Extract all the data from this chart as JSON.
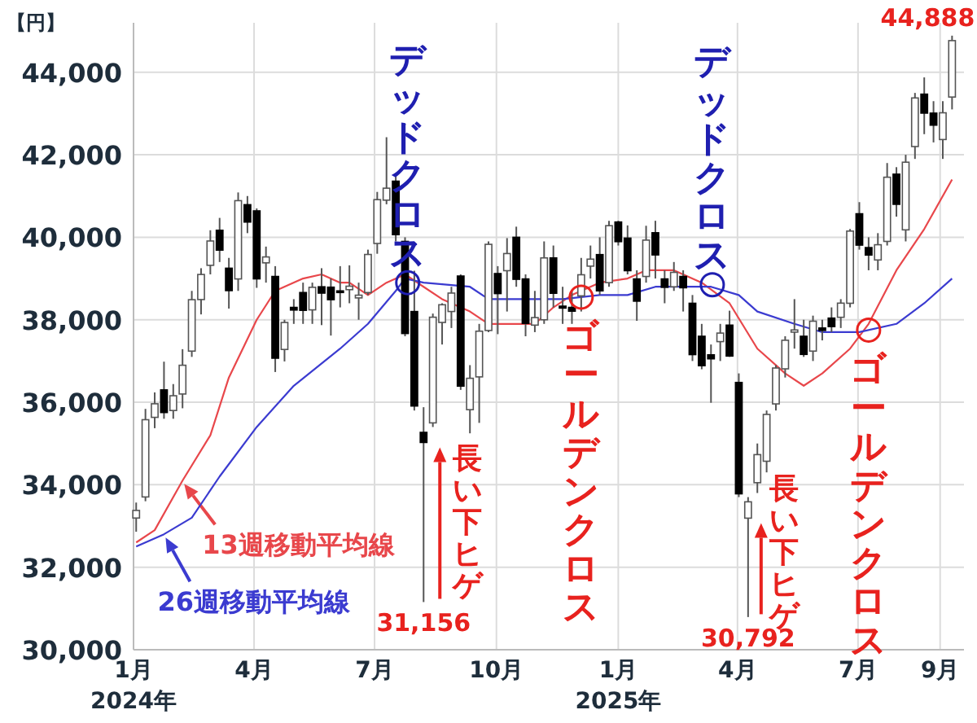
{
  "chart_data": {
    "type": "candlestick",
    "ylabel": "【円】",
    "x": [
      "2024-01-03",
      "2024-01-10",
      "2024-01-17",
      "2024-01-24",
      "2024-01-31",
      "2024-02-07",
      "2024-02-14",
      "2024-02-21",
      "2024-02-28",
      "2024-03-06",
      "2024-03-13",
      "2024-03-20",
      "2024-03-27",
      "2024-04-03",
      "2024-04-10",
      "2024-04-17",
      "2024-04-24",
      "2024-05-01",
      "2024-05-08",
      "2024-05-15",
      "2024-05-22",
      "2024-05-29",
      "2024-06-05",
      "2024-06-12",
      "2024-06-19",
      "2024-06-26",
      "2024-07-03",
      "2024-07-10",
      "2024-07-17",
      "2024-07-24",
      "2024-07-31",
      "2024-08-07",
      "2024-08-14",
      "2024-08-21",
      "2024-08-28",
      "2024-09-04",
      "2024-09-11",
      "2024-09-18",
      "2024-09-25",
      "2024-10-02",
      "2024-10-09",
      "2024-10-16",
      "2024-10-23",
      "2024-10-30",
      "2024-11-06",
      "2024-11-13",
      "2024-11-20",
      "2024-11-27",
      "2024-12-04",
      "2024-12-11",
      "2024-12-18",
      "2024-12-25",
      "2025-01-01",
      "2025-01-08",
      "2025-01-15",
      "2025-01-22",
      "2025-01-29",
      "2025-02-05",
      "2025-02-12",
      "2025-02-19",
      "2025-02-26",
      "2025-03-05",
      "2025-03-12",
      "2025-03-19",
      "2025-03-26",
      "2025-04-02",
      "2025-04-09",
      "2025-04-16",
      "2025-04-23",
      "2025-04-30",
      "2025-05-07",
      "2025-05-14",
      "2025-05-21",
      "2025-05-28",
      "2025-06-04",
      "2025-06-11",
      "2025-06-18",
      "2025-06-25",
      "2025-07-02",
      "2025-07-09",
      "2025-07-16",
      "2025-07-23",
      "2025-07-30",
      "2025-08-06",
      "2025-08-13",
      "2025-08-20",
      "2025-08-27",
      "2025-09-03",
      "2025-09-10"
    ],
    "ohlc": [
      [
        33193,
        33568,
        32860,
        33377
      ],
      [
        33704,
        35839,
        33600,
        35577
      ],
      [
        35634,
        36239,
        35371,
        35963
      ],
      [
        36300,
        36984,
        35600,
        35751
      ],
      [
        35800,
        36441,
        35600,
        36158
      ],
      [
        36200,
        37287,
        35854,
        36897
      ],
      [
        37240,
        38700,
        37100,
        38487
      ],
      [
        38490,
        39250,
        38130,
        39098
      ],
      [
        39320,
        40170,
        39100,
        39910
      ],
      [
        40170,
        40470,
        39400,
        39688
      ],
      [
        39250,
        39500,
        38271,
        38707
      ],
      [
        38990,
        41087,
        38700,
        40888
      ],
      [
        40790,
        41000,
        40100,
        40369
      ],
      [
        40640,
        40700,
        38774,
        38992
      ],
      [
        39380,
        39774,
        38900,
        39523
      ],
      [
        39050,
        39300,
        36733,
        37068
      ],
      [
        37280,
        38000,
        36990,
        37934
      ],
      [
        38300,
        38500,
        37900,
        38236
      ],
      [
        38660,
        38900,
        37900,
        38229
      ],
      [
        38240,
        38900,
        37900,
        38787
      ],
      [
        38800,
        39250,
        37870,
        38646
      ],
      [
        38790,
        39000,
        37617,
        38487
      ],
      [
        38700,
        39300,
        38300,
        38683
      ],
      [
        38730,
        39320,
        38400,
        38814
      ],
      [
        38530,
        38900,
        38000,
        38596
      ],
      [
        38660,
        39700,
        38600,
        39583
      ],
      [
        39850,
        41100,
        39600,
        40912
      ],
      [
        40900,
        42426,
        40800,
        41190
      ],
      [
        41360,
        41500,
        39900,
        40063
      ],
      [
        39900,
        40000,
        37600,
        37667
      ],
      [
        38200,
        39188,
        35800,
        35909
      ],
      [
        35270,
        35880,
        31156,
        35025
      ],
      [
        35500,
        38150,
        35400,
        38062
      ],
      [
        37935,
        38400,
        37400,
        38364
      ],
      [
        38200,
        38800,
        37800,
        38647
      ],
      [
        39060,
        39100,
        36300,
        36391
      ],
      [
        35820,
        36900,
        35247,
        36581
      ],
      [
        36615,
        37900,
        35500,
        37723
      ],
      [
        37740,
        39900,
        37700,
        39829
      ],
      [
        39120,
        39300,
        37651,
        38635
      ],
      [
        39190,
        39980,
        38200,
        39605
      ],
      [
        40000,
        40257,
        38800,
        38981
      ],
      [
        38990,
        39100,
        37600,
        37913
      ],
      [
        37870,
        38700,
        37700,
        38053
      ],
      [
        38000,
        39900,
        37900,
        39500
      ],
      [
        39500,
        39800,
        38300,
        38642
      ],
      [
        38330,
        38800,
        37900,
        38283
      ],
      [
        38300,
        38700,
        37900,
        38208
      ],
      [
        38580,
        39500,
        38200,
        39091
      ],
      [
        39300,
        39800,
        39000,
        39470
      ],
      [
        39580,
        40000,
        38600,
        38701
      ],
      [
        38900,
        40398,
        38800,
        40281
      ],
      [
        40370,
        40400,
        39800,
        39894
      ],
      [
        39980,
        40288,
        39100,
        39190
      ],
      [
        38990,
        39200,
        37974,
        38451
      ],
      [
        39050,
        40279,
        38900,
        39931
      ],
      [
        40110,
        40400,
        39000,
        39572
      ],
      [
        38990,
        39200,
        38400,
        38787
      ],
      [
        38800,
        39400,
        38700,
        39149
      ],
      [
        39050,
        39200,
        38200,
        38776
      ],
      [
        38400,
        38600,
        37000,
        37155
      ],
      [
        37600,
        37900,
        36800,
        36887
      ],
      [
        37150,
        37400,
        35987,
        37053
      ],
      [
        37470,
        37900,
        37000,
        37677
      ],
      [
        37870,
        38220,
        37100,
        37120
      ],
      [
        36480,
        36700,
        33700,
        33780
      ],
      [
        33190,
        33700,
        30792,
        33586
      ],
      [
        34050,
        35000,
        33800,
        34730
      ],
      [
        34570,
        35800,
        34300,
        35705
      ],
      [
        35960,
        36900,
        35800,
        36830
      ],
      [
        36810,
        37600,
        36600,
        37503
      ],
      [
        37700,
        38500,
        37300,
        37753
      ],
      [
        37600,
        38000,
        37100,
        37160
      ],
      [
        37240,
        38100,
        37000,
        37965
      ],
      [
        37800,
        38000,
        37500,
        37741
      ],
      [
        38040,
        38300,
        37700,
        37834
      ],
      [
        38060,
        38500,
        37800,
        38403
      ],
      [
        38400,
        40200,
        38300,
        40150
      ],
      [
        40570,
        40852,
        39700,
        39810
      ],
      [
        39750,
        40000,
        39200,
        39569
      ],
      [
        39450,
        40100,
        39200,
        39819
      ],
      [
        39900,
        41800,
        39800,
        41456
      ],
      [
        41530,
        41700,
        40500,
        40799
      ],
      [
        40180,
        42000,
        39900,
        41820
      ],
      [
        42200,
        43500,
        41900,
        43378
      ],
      [
        43470,
        43876,
        42500,
        43010
      ],
      [
        43010,
        43300,
        42300,
        42718
      ],
      [
        42370,
        43300,
        41900,
        43018
      ],
      [
        43400,
        44888,
        43100,
        44768
      ]
    ],
    "series": [
      {
        "type": "line",
        "name": "13週移動平均線",
        "color": "#e8474b",
        "x": [
          "2024-01-03",
          "2024-01-17",
          "2024-02-07",
          "2024-02-28",
          "2024-03-13",
          "2024-04-03",
          "2024-04-17",
          "2024-05-08",
          "2024-05-22",
          "2024-06-05",
          "2024-06-12",
          "2024-06-26",
          "2024-07-10",
          "2024-07-24",
          "2024-08-07",
          "2024-08-21",
          "2024-09-11",
          "2024-09-25",
          "2024-10-16",
          "2024-10-30",
          "2024-11-13",
          "2024-11-27",
          "2024-12-18",
          "2025-01-08",
          "2025-01-22",
          "2025-02-12",
          "2025-03-05",
          "2025-03-26",
          "2025-04-16",
          "2025-05-07",
          "2025-05-21",
          "2025-06-04",
          "2025-06-25",
          "2025-07-09",
          "2025-07-30",
          "2025-08-20",
          "2025-09-10"
        ],
        "values": [
          32600,
          32900,
          34100,
          35200,
          36600,
          38000,
          38700,
          39000,
          39100,
          38900,
          38900,
          38600,
          38900,
          39100,
          38800,
          38500,
          38200,
          37900,
          37900,
          37900,
          38300,
          38600,
          38900,
          39000,
          39200,
          39200,
          38900,
          38400,
          37300,
          36700,
          36400,
          36700,
          37300,
          37900,
          39200,
          40200,
          41400
        ]
      },
      {
        "type": "line",
        "name": "26週移動平均線",
        "color": "#3b3bd0",
        "x": [
          "2024-01-03",
          "2024-01-24",
          "2024-02-14",
          "2024-03-06",
          "2024-04-03",
          "2024-05-01",
          "2024-06-05",
          "2024-06-26",
          "2024-07-17",
          "2024-07-24",
          "2024-08-07",
          "2024-09-11",
          "2024-09-25",
          "2024-10-16",
          "2024-11-20",
          "2024-12-18",
          "2025-01-08",
          "2025-01-29",
          "2025-02-26",
          "2025-03-12",
          "2025-04-02",
          "2025-04-16",
          "2025-05-14",
          "2025-06-04",
          "2025-07-02",
          "2025-07-30",
          "2025-08-20",
          "2025-09-10"
        ],
        "values": [
          32500,
          32800,
          33200,
          34200,
          35400,
          36400,
          37300,
          37900,
          38700,
          39000,
          38900,
          38800,
          38500,
          38500,
          38500,
          38600,
          38600,
          38800,
          38800,
          38800,
          38600,
          38200,
          37900,
          37700,
          37700,
          37900,
          38400,
          39000
        ]
      }
    ],
    "legend": "bottom left",
    "xlim": [
      "2024-01-01",
      "2025-09-19"
    ],
    "xticks": [
      {
        "value": "2024-01-01",
        "label": "1月\n2024年"
      },
      {
        "value": "2024-04-01",
        "label": "4月"
      },
      {
        "value": "2024-07-01",
        "label": "7月"
      },
      {
        "value": "2024-10-01",
        "label": "10月"
      },
      {
        "value": "2025-01-01",
        "label": "1月\n2025年"
      },
      {
        "value": "2025-04-01",
        "label": "4月"
      },
      {
        "value": "2025-07-01",
        "label": "7月"
      },
      {
        "value": "2025-09-01",
        "label": "9月"
      }
    ],
    "ylim": [
      30000,
      45200
    ],
    "yticks": [
      {
        "value": 30000,
        "label": "30,000"
      },
      {
        "value": 32000,
        "label": "32,000"
      },
      {
        "value": 34000,
        "label": "34,000"
      },
      {
        "value": 36000,
        "label": "36,000"
      },
      {
        "value": 38000,
        "label": "38,000"
      },
      {
        "value": 40000,
        "label": "40,000"
      },
      {
        "value": 42000,
        "label": "42,000"
      },
      {
        "value": 44000,
        "label": "44,000"
      }
    ],
    "grid": true,
    "annotations": [
      {
        "text": "デッドクロス",
        "x": "2024-07-26",
        "y": 38900
      },
      {
        "text": "ゴールデンクロス",
        "x": "2024-12-04",
        "y": 38550
      },
      {
        "text": "デッドクロス",
        "x": "2025-03-13",
        "y": 38850
      },
      {
        "text": "ゴールデンクロス",
        "x": "2025-07-09",
        "y": 37750
      },
      {
        "text": "長い下ヒゲ",
        "x": "2024-08-07",
        "y": 35025
      },
      {
        "text": "長い下ヒゲ",
        "x": "2025-04-09",
        "y": 33190
      },
      {
        "text": "31,156",
        "x": "2024-08-07",
        "y": 31156
      },
      {
        "text": "30,792",
        "x": "2025-04-09",
        "y": 30792
      },
      {
        "text": "44,888",
        "x": "2025-09-10",
        "y": 44888
      }
    ]
  }
}
